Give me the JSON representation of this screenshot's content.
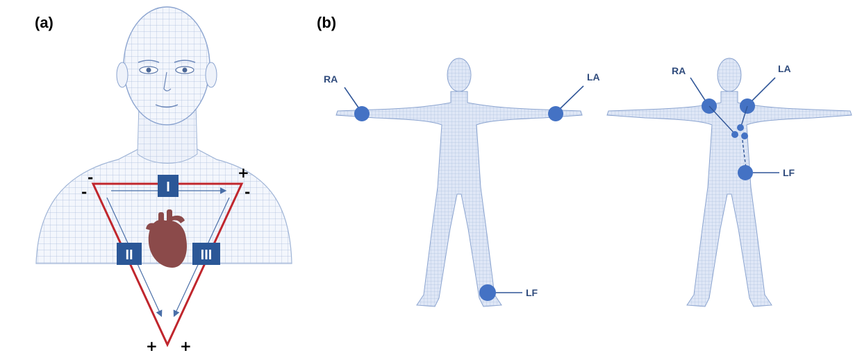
{
  "colors": {
    "mesh": "#9fb4d6",
    "mesh_fill": "#f3f6fc",
    "body_fill": "#dfe7f6",
    "triangle": "#c0262d",
    "lead_box": "#2b5797",
    "heart": "#8b4a4a",
    "electrode": "#4472c4",
    "electrode_line": "#2f5597",
    "label_text": "#2f4b7c"
  },
  "panel_a": {
    "label": "(a)",
    "leads": {
      "I": "I",
      "II": "II",
      "III": "III"
    },
    "signs": {
      "top_left_1": "-",
      "top_left_2": "-",
      "top_right_1": "+",
      "top_right_2": "-",
      "bottom_left": "+",
      "bottom_right": "+"
    },
    "icons": {
      "heart": "heart-icon"
    }
  },
  "panel_b": {
    "label": "(b)",
    "figure_left": {
      "RA": "RA",
      "LA": "LA",
      "LF": "LF"
    },
    "figure_right": {
      "RA": "RA",
      "LA": "LA",
      "LF": "LF"
    }
  }
}
